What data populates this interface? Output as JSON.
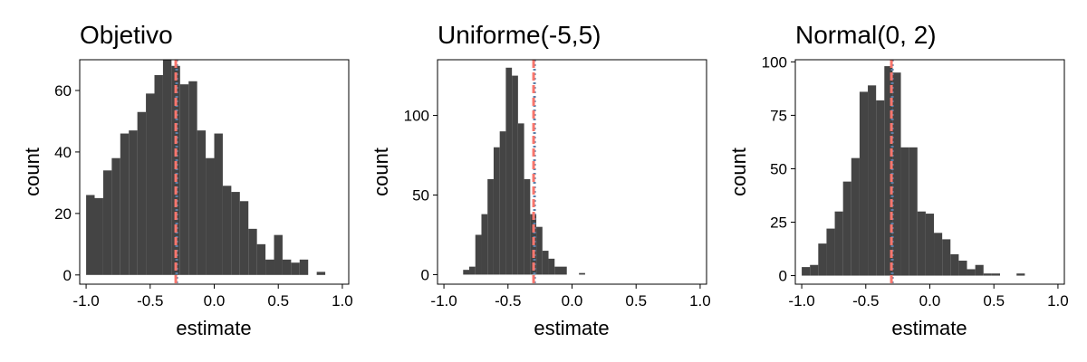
{
  "colors": {
    "bar": "#444444",
    "red_line": "#F8766D",
    "blue_line": "#5B7FA8"
  },
  "chart_data": [
    {
      "type": "bar",
      "title": "Objetivo",
      "xlabel": "estimate",
      "ylabel": "count",
      "xlim": [
        -1.05,
        1.05
      ],
      "ylim": [
        -3,
        70
      ],
      "xticks": [
        -1.0,
        -0.5,
        0.0,
        0.5,
        1.0
      ],
      "xtick_labels": [
        "-1.0",
        "-0.5",
        "0.0",
        "0.5",
        "1.0"
      ],
      "yticks": [
        0,
        20,
        40,
        60
      ],
      "ytick_labels": [
        "0",
        "20",
        "40",
        "60"
      ],
      "bin_start": -1.0,
      "bin_width": 0.06667,
      "counts": [
        26,
        25,
        34,
        38,
        46,
        47,
        53,
        59,
        65,
        70,
        68,
        62,
        63,
        47,
        38,
        46,
        29,
        27,
        24,
        15,
        10,
        5,
        13,
        5,
        4,
        5,
        0,
        1
      ],
      "vlines": [
        {
          "x": -0.3,
          "color": "#5B7FA8"
        },
        {
          "x": -0.3,
          "color": "#F8766D"
        }
      ]
    },
    {
      "type": "bar",
      "title": "Uniforme(-5,5)",
      "xlabel": "estimate",
      "ylabel": "count",
      "xlim": [
        -1.05,
        1.05
      ],
      "ylim": [
        -6,
        135
      ],
      "xticks": [
        -1.0,
        -0.5,
        0.0,
        0.5,
        1.0
      ],
      "xtick_labels": [
        "-1.0",
        "-0.5",
        "0.0",
        "0.5",
        "1.0"
      ],
      "yticks": [
        0,
        50,
        100
      ],
      "ytick_labels": [
        "0",
        "50",
        "100"
      ],
      "bin_start": -0.85,
      "bin_width": 0.0476,
      "counts": [
        3,
        5,
        25,
        38,
        60,
        80,
        90,
        130,
        125,
        95,
        60,
        38,
        30,
        15,
        10,
        5,
        5,
        0,
        0,
        1
      ],
      "vlines": [
        {
          "x": -0.3,
          "color": "#5B7FA8"
        },
        {
          "x": -0.3,
          "color": "#F8766D"
        }
      ]
    },
    {
      "type": "bar",
      "title": "Normal(0, 2)",
      "xlabel": "estimate",
      "ylabel": "count",
      "xlim": [
        -1.05,
        1.05
      ],
      "ylim": [
        -4,
        101
      ],
      "xticks": [
        -1.0,
        -0.5,
        0.0,
        0.5,
        1.0
      ],
      "xtick_labels": [
        "-1.0",
        "-0.5",
        "0.0",
        "0.5",
        "1.0"
      ],
      "yticks": [
        0,
        25,
        50,
        75,
        100
      ],
      "ytick_labels": [
        "0",
        "25",
        "50",
        "75",
        "100"
      ],
      "bin_start": -1.0,
      "bin_width": 0.0645,
      "counts": [
        4,
        5,
        15,
        22,
        30,
        44,
        55,
        86,
        89,
        82,
        98,
        95,
        60,
        60,
        30,
        29,
        20,
        17,
        10,
        7,
        3,
        5,
        1,
        1,
        0,
        0,
        1
      ],
      "vlines": [
        {
          "x": -0.3,
          "color": "#5B7FA8"
        },
        {
          "x": -0.3,
          "color": "#F8766D"
        }
      ]
    }
  ]
}
